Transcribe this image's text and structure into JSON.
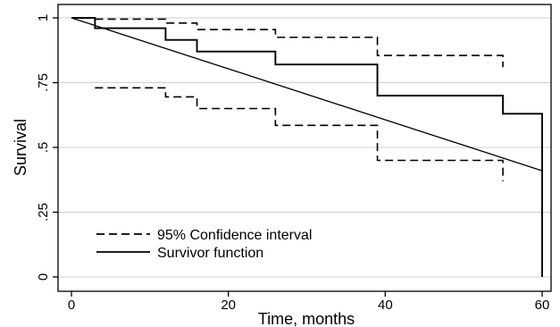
{
  "chart_data": {
    "type": "line",
    "title": "",
    "xlabel": "Time, months",
    "ylabel": "Survival",
    "xlim": [
      0,
      60
    ],
    "ylim": [
      0,
      1
    ],
    "x_ticks": [
      0,
      20,
      40,
      60
    ],
    "x_tick_labels": [
      "0",
      "20",
      "40",
      "60"
    ],
    "y_ticks": [
      0,
      0.25,
      0.5,
      0.75,
      1
    ],
    "y_tick_labels": [
      "0",
      ".25",
      ".5",
      ".75",
      "1"
    ],
    "grid": "horizontal",
    "legend": {
      "placement": "bottom-left",
      "entries": [
        {
          "label": "95% Confidence interval",
          "style": "dashed"
        },
        {
          "label": "Survivor function",
          "style": "solid"
        }
      ]
    },
    "series": [
      {
        "name": "Survivor function",
        "kind": "step",
        "style": "solid",
        "points": [
          [
            0,
            1
          ],
          [
            3,
            1
          ],
          [
            3,
            0.96
          ],
          [
            12,
            0.96
          ],
          [
            12,
            0.915
          ],
          [
            16,
            0.915
          ],
          [
            16,
            0.87
          ],
          [
            26,
            0.87
          ],
          [
            26,
            0.82
          ],
          [
            39,
            0.82
          ],
          [
            39,
            0.7
          ],
          [
            55,
            0.7
          ],
          [
            55,
            0.63
          ],
          [
            60,
            0.63
          ],
          [
            60,
            0.0
          ]
        ]
      },
      {
        "name": "95% Confidence interval",
        "kind": "step",
        "style": "dashed",
        "points": [
          [
            0,
            1
          ],
          [
            3,
            1
          ],
          [
            3,
            0.995
          ],
          [
            12,
            0.995
          ],
          [
            12,
            0.98
          ],
          [
            16,
            0.98
          ],
          [
            16,
            0.955
          ],
          [
            26,
            0.955
          ],
          [
            26,
            0.925
          ],
          [
            39,
            0.925
          ],
          [
            39,
            0.855
          ],
          [
            55,
            0.855
          ],
          [
            55,
            0.81
          ]
        ]
      },
      {
        "name": "95% Confidence interval",
        "kind": "step",
        "style": "dashed",
        "points": [
          [
            3,
            0.73
          ],
          [
            12,
            0.73
          ],
          [
            12,
            0.695
          ],
          [
            16,
            0.695
          ],
          [
            16,
            0.65
          ],
          [
            26,
            0.65
          ],
          [
            26,
            0.585
          ],
          [
            39,
            0.585
          ],
          [
            39,
            0.45
          ],
          [
            55,
            0.45
          ],
          [
            55,
            0.37
          ]
        ]
      },
      {
        "name": "",
        "kind": "line",
        "style": "solid-thin",
        "points": [
          [
            0,
            1
          ],
          [
            60,
            0.41
          ]
        ]
      }
    ]
  }
}
